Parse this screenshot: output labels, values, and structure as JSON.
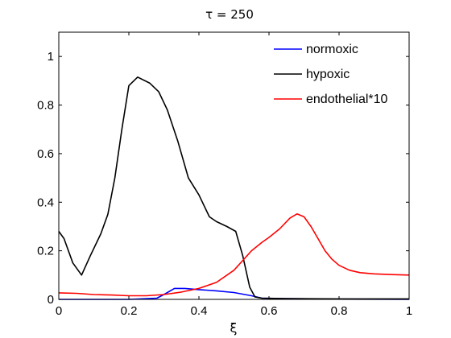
{
  "chart_data": {
    "type": "line",
    "title": "τ = 250",
    "xlabel": "ξ",
    "ylabel": "",
    "xlim": [
      0,
      1
    ],
    "ylim": [
      0,
      1.1
    ],
    "xticks": [
      0,
      0.2,
      0.4,
      0.6,
      0.8,
      1
    ],
    "xtick_labels": [
      "0",
      "0.2",
      "0.4",
      "0.6",
      "0.8",
      "1"
    ],
    "yticks": [
      0,
      0.2,
      0.4,
      0.6,
      0.8,
      1
    ],
    "ytick_labels": [
      "0",
      "0.2",
      "0.4",
      "0.6",
      "0.8",
      "1"
    ],
    "grid": false,
    "legend_position": "top-right",
    "series": [
      {
        "name": "normoxic",
        "color": "#0000ff",
        "x": [
          0,
          0.1,
          0.2,
          0.28,
          0.3,
          0.33,
          0.36,
          0.4,
          0.45,
          0.5,
          0.55,
          0.58,
          0.65,
          0.8,
          1.0
        ],
        "y": [
          0,
          0,
          0,
          0.005,
          0.02,
          0.045,
          0.045,
          0.04,
          0.035,
          0.028,
          0.015,
          0.005,
          0.003,
          0.001,
          0
        ]
      },
      {
        "name": "hypoxic",
        "color": "#000000",
        "x": [
          0,
          0.015,
          0.04,
          0.065,
          0.09,
          0.12,
          0.14,
          0.16,
          0.18,
          0.2,
          0.225,
          0.26,
          0.285,
          0.31,
          0.34,
          0.37,
          0.4,
          0.43,
          0.45,
          0.48,
          0.505,
          0.525,
          0.545,
          0.56,
          0.58,
          0.65,
          0.8,
          1.0
        ],
        "y": [
          0.28,
          0.25,
          0.15,
          0.1,
          0.18,
          0.27,
          0.35,
          0.5,
          0.7,
          0.88,
          0.915,
          0.89,
          0.855,
          0.78,
          0.65,
          0.5,
          0.43,
          0.34,
          0.32,
          0.3,
          0.28,
          0.18,
          0.05,
          0.01,
          0.005,
          0.003,
          0.002,
          0.002
        ]
      },
      {
        "name": "endothelial*10",
        "color": "#ff0000",
        "x": [
          0,
          0.05,
          0.1,
          0.15,
          0.2,
          0.25,
          0.3,
          0.35,
          0.4,
          0.45,
          0.5,
          0.55,
          0.58,
          0.6,
          0.63,
          0.66,
          0.68,
          0.7,
          0.72,
          0.74,
          0.76,
          0.78,
          0.8,
          0.83,
          0.86,
          0.9,
          0.95,
          1.0
        ],
        "y": [
          0.027,
          0.025,
          0.02,
          0.018,
          0.015,
          0.015,
          0.02,
          0.03,
          0.045,
          0.07,
          0.12,
          0.2,
          0.235,
          0.255,
          0.29,
          0.335,
          0.352,
          0.34,
          0.3,
          0.25,
          0.2,
          0.165,
          0.14,
          0.12,
          0.11,
          0.105,
          0.102,
          0.1
        ]
      }
    ]
  }
}
